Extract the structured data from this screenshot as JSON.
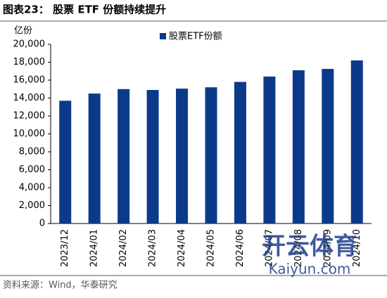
{
  "chart_data": {
    "type": "bar",
    "title": "图表23： 股票 ETF 份额持续提升",
    "y_label": "亿份",
    "source": "资料来源：Wind，华泰研究",
    "watermark": [
      "开云体育",
      "Kaiyun.com"
    ],
    "categories": [
      "2023/12",
      "2024/01",
      "2024/02",
      "2024/03",
      "2024/04",
      "2024/05",
      "2024/06",
      "2024/07",
      "2024/08",
      "2024/09",
      "2024/10"
    ],
    "series": [
      {
        "name": "股票ETF份额",
        "color": "#0b3a8a",
        "values": [
          13700,
          14500,
          15000,
          14900,
          15050,
          15200,
          15800,
          16400,
          17100,
          17250,
          18200
        ]
      }
    ],
    "ylim": [
      0,
      20000
    ],
    "yticks": [
      0,
      {
        "value": 2000,
        "label": "2,000"
      },
      {
        "value": 4000,
        "label": "4,000"
      },
      {
        "value": 6000,
        "label": "6,000"
      },
      {
        "value": 8000,
        "label": "8,000"
      },
      {
        "value": 10000,
        "label": "10,000"
      },
      {
        "value": 12000,
        "label": "12,000"
      },
      {
        "value": 14000,
        "label": "14,000"
      },
      {
        "value": 16000,
        "label": "16,000"
      },
      {
        "value": 18000,
        "label": "18,000"
      },
      {
        "value": 20000,
        "label": "20,000"
      }
    ],
    "grid": false,
    "legend": "top"
  }
}
